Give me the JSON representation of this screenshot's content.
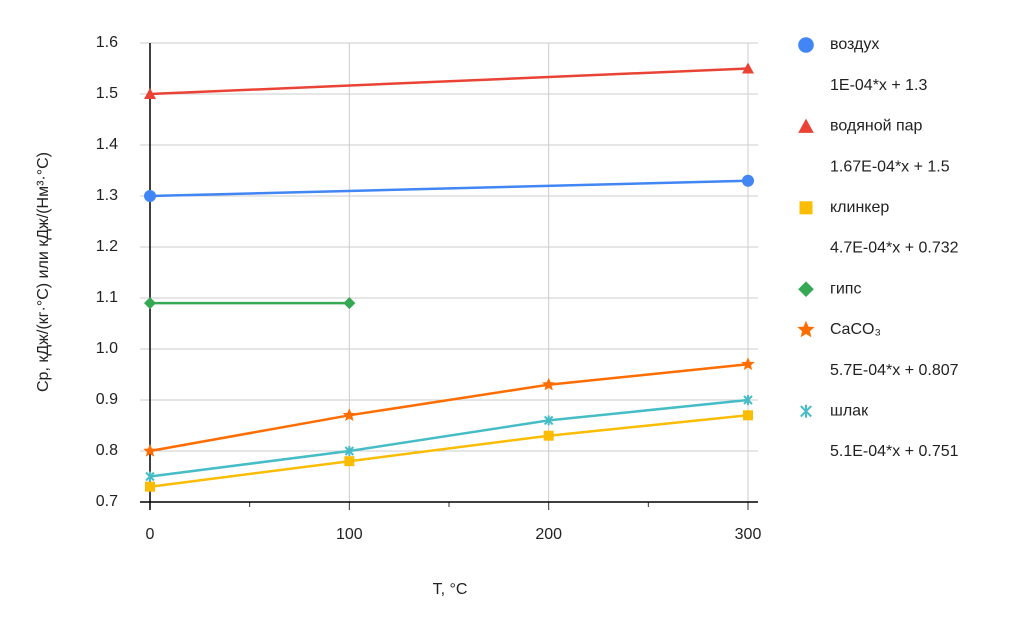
{
  "chart_data": {
    "type": "line",
    "x_label": "T, °C",
    "y_label": "Cp, кДж/(кг·°C) или кДж/(Нм³·°C)",
    "xlim": [
      0,
      300
    ],
    "xticks": [
      0,
      100,
      200,
      300
    ],
    "xminorticks": [
      50,
      150,
      250
    ],
    "ylim": [
      0.7,
      1.6
    ],
    "yticks": [
      0.7,
      0.8,
      0.9,
      {
        "value": 1,
        "label": "1.0"
      },
      1.1,
      1.2,
      1.3,
      1.4,
      1.5,
      1.6
    ],
    "grid": true,
    "legend": "right",
    "series": [
      {
        "name": "воздух",
        "color": "#4285f4",
        "marker": "circle",
        "trendline": "1E-04*x + 1.3",
        "x": [
          0,
          300
        ],
        "values": [
          1.3,
          1.33
        ]
      },
      {
        "name": "водяной пар",
        "color": "#ea4335",
        "marker": "triangle",
        "trendline": "1.67E-04*x + 1.5",
        "x": [
          0,
          300
        ],
        "values": [
          1.5,
          1.55
        ]
      },
      {
        "name": "клинкер",
        "color": "#fbbc04",
        "marker": "square",
        "trendline": "4.7E-04*x + 0.732",
        "x": [
          0,
          100,
          200,
          300
        ],
        "values": [
          0.73,
          0.78,
          0.83,
          0.87
        ]
      },
      {
        "name": "гипс",
        "color": "#34a853",
        "marker": "diamond",
        "x": [
          0,
          100
        ],
        "values": [
          1.09,
          1.09
        ]
      },
      {
        "name": "CaCO₃",
        "color": "#ff6d01",
        "marker": "star",
        "trendline": "5.7E-04*x + 0.807",
        "x": [
          0,
          100,
          200,
          300
        ],
        "values": [
          0.8,
          0.87,
          0.93,
          0.97
        ]
      },
      {
        "name": "шлак",
        "color": "#46bdc6",
        "marker": "cross",
        "trendline": "5.1E-04*x + 0.751",
        "x": [
          0,
          100,
          200,
          300
        ],
        "values": [
          0.75,
          0.8,
          0.86,
          0.9
        ]
      }
    ]
  }
}
